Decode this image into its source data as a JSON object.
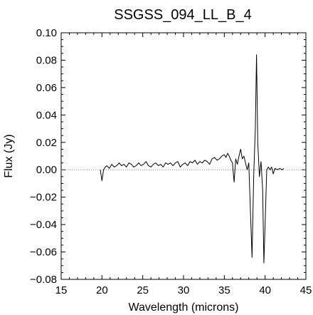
{
  "chart_data": {
    "type": "line",
    "title": "SSGSS_094_LL_B_4",
    "xlabel": "Wavelength (microns)",
    "ylabel": "Flux (Jy)",
    "xlim": [
      15,
      45
    ],
    "ylim": [
      -0.08,
      0.1
    ],
    "xticks": [
      15,
      20,
      25,
      30,
      35,
      40,
      45
    ],
    "xtick_labels": [
      "15",
      "20",
      "25",
      "30",
      "35",
      "40",
      "45"
    ],
    "yticks": [
      -0.08,
      -0.06,
      -0.04,
      -0.02,
      0.0,
      0.02,
      0.04,
      0.06,
      0.08,
      0.1
    ],
    "ytick_labels": [
      "−0.08",
      "−0.06",
      "−0.04",
      "−0.02",
      "0.00",
      "0.02",
      "0.04",
      "0.06",
      "0.08",
      "0.10"
    ],
    "reference_line": {
      "y": 0.0,
      "style": "dotted"
    },
    "grid": false,
    "series": [
      {
        "color": "#000000",
        "x": [
          19.8,
          20.0,
          20.2,
          20.4,
          20.6,
          20.9,
          21.2,
          21.5,
          21.8,
          22.1,
          22.4,
          22.7,
          23.0,
          23.3,
          23.6,
          23.9,
          24.2,
          24.5,
          24.8,
          25.1,
          25.4,
          25.7,
          26.0,
          26.3,
          26.6,
          26.9,
          27.2,
          27.5,
          27.8,
          28.1,
          28.4,
          28.7,
          29.0,
          29.3,
          29.6,
          29.9,
          30.2,
          30.5,
          30.8,
          31.1,
          31.4,
          31.7,
          32.0,
          32.3,
          32.6,
          32.9,
          33.2,
          33.5,
          33.8,
          34.1,
          34.4,
          34.7,
          35.0,
          35.2,
          35.4,
          35.6,
          35.8,
          36.0,
          36.2,
          36.4,
          36.6,
          36.8,
          37.0,
          37.2,
          37.4,
          37.6,
          37.8,
          38.0,
          38.2,
          38.4,
          38.6,
          38.8,
          38.95,
          39.1,
          39.3,
          39.5,
          39.7,
          39.85,
          40.0,
          40.2,
          40.4,
          40.6,
          40.8,
          41.0,
          41.2,
          41.5,
          41.8,
          42.1,
          42.3
        ],
        "y": [
          0.0,
          -0.008,
          0.0,
          0.002,
          0.003,
          0.001,
          0.004,
          0.002,
          0.003,
          0.005,
          0.003,
          0.004,
          0.002,
          0.005,
          0.004,
          0.002,
          0.003,
          0.005,
          0.003,
          0.004,
          0.006,
          0.003,
          0.002,
          0.004,
          0.005,
          0.003,
          0.004,
          0.002,
          0.005,
          0.004,
          0.005,
          0.003,
          0.005,
          0.006,
          0.002,
          0.004,
          0.005,
          0.003,
          0.006,
          0.005,
          0.007,
          0.004,
          0.006,
          0.005,
          0.007,
          0.006,
          0.004,
          0.008,
          0.009,
          0.007,
          0.008,
          0.01,
          0.011,
          0.009,
          0.012,
          0.01,
          0.007,
          0.005,
          -0.009,
          0.008,
          0.004,
          0.01,
          0.015,
          0.008,
          0.01,
          0.005,
          0.0,
          0.005,
          -0.03,
          -0.064,
          -0.005,
          0.03,
          0.084,
          0.02,
          -0.005,
          0.006,
          -0.015,
          -0.068,
          -0.04,
          0.0,
          0.002,
          0.0,
          0.002,
          -0.003,
          0.001,
          0.0,
          0.001,
          0.0,
          0.001
        ]
      }
    ]
  }
}
